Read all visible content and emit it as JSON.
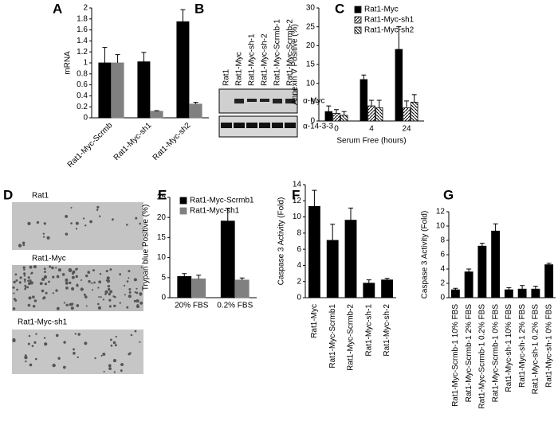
{
  "panel_labels": [
    "A",
    "B",
    "C",
    "D",
    "E",
    "F",
    "G"
  ],
  "blot": {
    "lanes": [
      "Rat1",
      "Rat1-Myc",
      "Rat1-Myc-sh-1",
      "Rat1-Myc-sh-2",
      "Rat1-Myc-Scrmb-1",
      "Rat1-Myc-Scrmb-2"
    ],
    "antibodies": [
      "α-Myc",
      "α-14-3-3"
    ]
  },
  "micrographs": {
    "labels": [
      "Rat1",
      "Rat1-Myc",
      "Rat1-Myc-sh1"
    ]
  },
  "chart_data": [
    {
      "type": "bar",
      "y_label": "mRNA",
      "categories": [
        "Rat1-Myc-Scrmb",
        "Rat1-Myc-sh1",
        "Rat1-Myc-sh2"
      ],
      "series": [
        {
          "color": "#000000",
          "values": [
            1.0,
            1.02,
            1.75
          ],
          "errors": [
            0.28,
            0.17,
            0.22
          ]
        },
        {
          "color": "#808080",
          "values": [
            1.0,
            0.12,
            0.25
          ],
          "errors": [
            0.15,
            0.01,
            0.03
          ]
        }
      ],
      "ylim": [
        0,
        2
      ],
      "yticks": [
        0,
        0.2,
        0.4,
        0.6,
        0.8,
        1,
        1.2,
        1.4,
        1.6,
        1.8,
        2
      ]
    },
    {
      "type": "bar",
      "y_label": "Annexin V Positive (%)",
      "x_label": "Serum Free (hours)",
      "categories": [
        "0",
        "4",
        "24"
      ],
      "series": [
        {
          "name": "Rat1-Myc",
          "color": "#000000",
          "pattern": "solid",
          "values": [
            2.5,
            11,
            19
          ],
          "errors": [
            1.5,
            1.2,
            6
          ]
        },
        {
          "name": "Rat1-Myc-sh1",
          "color": "#000000",
          "pattern": "hatch-right",
          "values": [
            2,
            4,
            3.5
          ],
          "errors": [
            1,
            1.5,
            1.8
          ]
        },
        {
          "name": "Rat1-Myc-sh2",
          "color": "#000000",
          "pattern": "hatch-left",
          "values": [
            1.5,
            3.5,
            5
          ],
          "errors": [
            1,
            2,
            2
          ]
        }
      ],
      "ylim": [
        0,
        30
      ],
      "yticks": [
        0,
        5,
        10,
        15,
        20,
        25,
        30
      ],
      "legend": "top-left"
    },
    {
      "type": "bar",
      "y_label": "Trypan blue Positive (%)",
      "categories": [
        "20% FBS",
        "0.2% FBS"
      ],
      "series": [
        {
          "name": "Rat1-Myc-Scrmb1",
          "color": "#000000",
          "values": [
            5.3,
            19.1
          ],
          "errors": [
            0.7,
            3.2
          ]
        },
        {
          "name": "Rat1-Myc-sh1",
          "color": "#808080",
          "values": [
            4.7,
            4.4
          ],
          "errors": [
            0.9,
            0.5
          ]
        }
      ],
      "ylim": [
        0,
        25
      ],
      "yticks": [
        0,
        5,
        10,
        15,
        20,
        25
      ],
      "legend": "top-left"
    },
    {
      "type": "bar",
      "y_label": "Caspase 3 Activity (Fold)",
      "categories": [
        "Rat1-Myc",
        "Rat1-Myc-Scrmb1",
        "Rat1-Myc-Scrmb-2",
        "Rat1-Myc-sh-1",
        "Rat1-Myc-sh-2"
      ],
      "series": [
        {
          "color": "#000000",
          "values": [
            11.3,
            7.1,
            9.6,
            1.8,
            2.2
          ],
          "errors": [
            2.0,
            2.0,
            1.5,
            0.4,
            0.2
          ]
        }
      ],
      "ylim": [
        0,
        14
      ],
      "yticks": [
        0,
        2,
        4,
        6,
        8,
        10,
        12,
        14
      ]
    },
    {
      "type": "bar",
      "y_label": "Caspase 3 Activity (Fold)",
      "categories": [
        "Rat1-Myc-Scrmb-1 10% FBS",
        "Rat1-Myc-Scrmb-1 2% FBS",
        "Rat1-Myc-Scrmb-1 0.2% FBS",
        "Rat1-Myc-Scrmb-1 0% FBS",
        "Rat1-Myc-sh-1 10% FBS",
        "Rat1-Myc-sh-1 2% FBS",
        "Rat1-Myc-sh-1 0.2% FBS",
        "Rat1-Myc-sh-1 0% FBS"
      ],
      "series": [
        {
          "color": "#000000",
          "values": [
            1.1,
            3.6,
            7.2,
            9.3,
            1.1,
            1.2,
            1.2,
            4.6
          ],
          "errors": [
            0.2,
            0.4,
            0.4,
            1.0,
            0.3,
            0.5,
            0.4,
            0.2
          ]
        }
      ],
      "ylim": [
        0,
        12
      ],
      "yticks": [
        0,
        2,
        4,
        6,
        8,
        10,
        12
      ]
    }
  ]
}
